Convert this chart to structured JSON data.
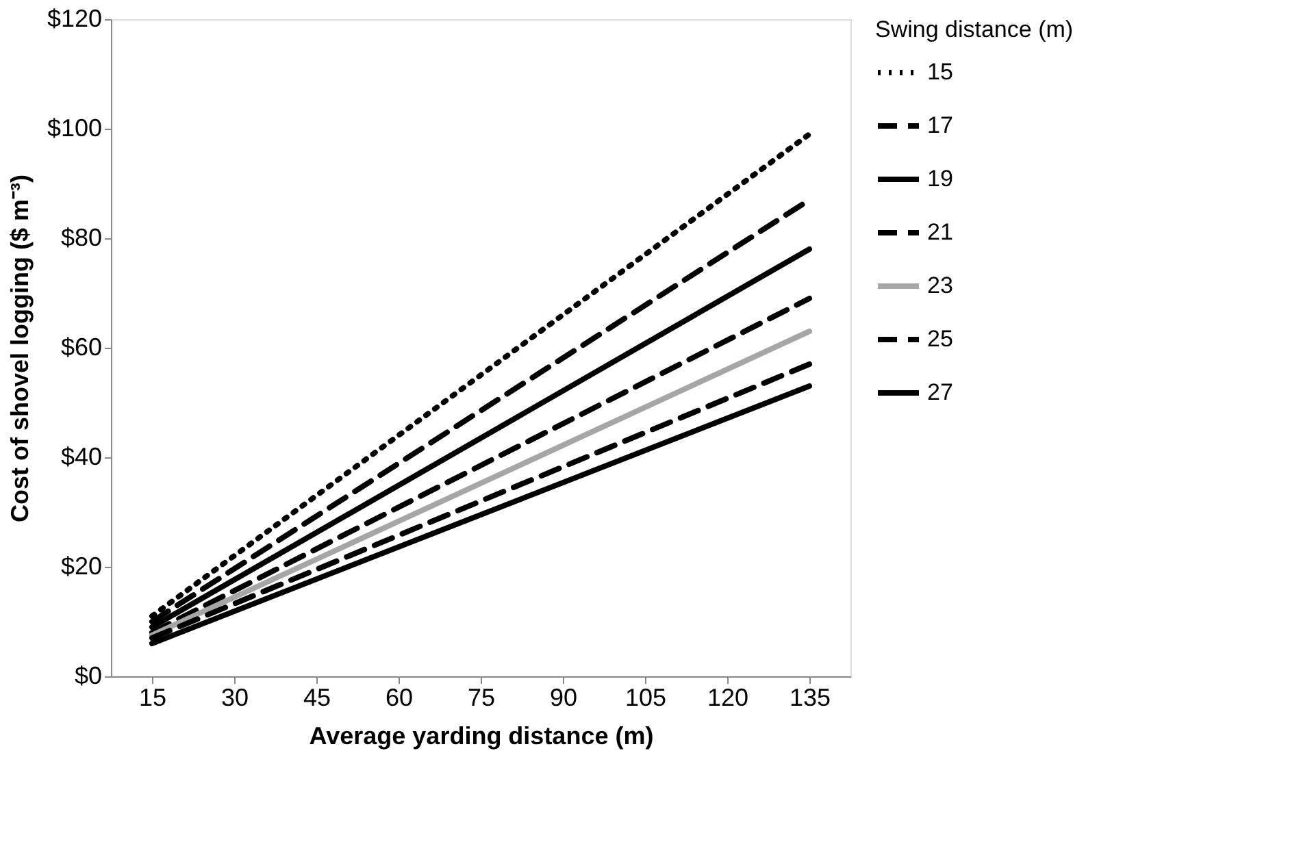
{
  "chart_data": {
    "type": "line",
    "xlabel": "Average yarding distance (m)",
    "ylabel": "Cost of shovel logging ($ m⁻³)",
    "legend_title": "Swing distance (m)",
    "legend": "right",
    "grid": false,
    "marker": "none",
    "x": [
      15,
      135
    ],
    "xlim": [
      7.5,
      142.5
    ],
    "xticks": [
      15,
      30,
      45,
      60,
      75,
      90,
      105,
      120,
      135
    ],
    "ylim": [
      0,
      120
    ],
    "yticks": [
      {
        "value": 0,
        "label": "$0"
      },
      {
        "value": 20,
        "label": "$20"
      },
      {
        "value": 40,
        "label": "$40"
      },
      {
        "value": 60,
        "label": "$60"
      },
      {
        "value": 80,
        "label": "$80"
      },
      {
        "value": 100,
        "label": "$100"
      },
      {
        "value": 120,
        "label": "$120"
      }
    ],
    "series": [
      {
        "name": "15",
        "color": "#000000",
        "line_style": "dotted",
        "values": [
          11,
          99
        ]
      },
      {
        "name": "17",
        "color": "#000000",
        "line_style": "dashed",
        "values": [
          10,
          87
        ]
      },
      {
        "name": "19",
        "color": "#000000",
        "line_style": "solid",
        "values": [
          9,
          78
        ]
      },
      {
        "name": "21",
        "color": "#000000",
        "line_style": "dashed",
        "values": [
          8,
          69
        ]
      },
      {
        "name": "23",
        "color": "#a6a6a6",
        "line_style": "solid",
        "values": [
          7.5,
          63
        ]
      },
      {
        "name": "25",
        "color": "#000000",
        "line_style": "dashed",
        "values": [
          7,
          57
        ]
      },
      {
        "name": "27",
        "color": "#000000",
        "line_style": "solid",
        "values": [
          6,
          53
        ]
      }
    ]
  }
}
